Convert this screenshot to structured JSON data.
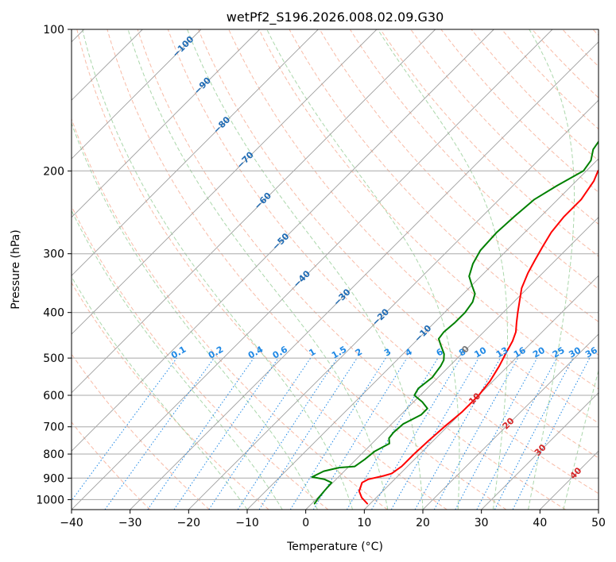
{
  "chart_data": {
    "type": "line",
    "title": "wetPf2_S196.2026.008.02.09.G30",
    "xlabel": "Temperature (°C)",
    "ylabel": "Pressure (hPa)",
    "xlim": [
      -40,
      50
    ],
    "ylim": [
      1050,
      100
    ],
    "y_scale": "log",
    "grid": true,
    "x_ticks": [
      -40,
      -30,
      -20,
      -10,
      0,
      10,
      20,
      30,
      40,
      50
    ],
    "x_tick_labels": [
      "−40",
      "−30",
      "−20",
      "−10",
      "0",
      "10",
      "20",
      "30",
      "40",
      "50"
    ],
    "y_ticks": [
      100,
      200,
      300,
      400,
      500,
      600,
      700,
      800,
      900,
      1000
    ],
    "y_tick_labels": [
      "100",
      "200",
      "300",
      "400",
      "500",
      "600",
      "700",
      "800",
      "900",
      "1000"
    ],
    "series": [
      {
        "color": "#ff0000",
        "points": [
          [
            9.5,
            1020
          ],
          [
            7.5,
            990
          ],
          [
            6.0,
            960
          ],
          [
            5.0,
            920
          ],
          [
            5.5,
            905
          ],
          [
            7.5,
            890
          ],
          [
            8.5,
            880
          ],
          [
            9.0,
            850
          ],
          [
            9.0,
            800
          ],
          [
            9.2,
            750
          ],
          [
            9.5,
            700
          ],
          [
            10.0,
            650
          ],
          [
            10.0,
            600
          ],
          [
            9.5,
            560
          ],
          [
            8.5,
            520
          ],
          [
            7.5,
            490
          ],
          [
            6.5,
            460
          ],
          [
            5.5,
            440
          ],
          [
            4.0,
            420
          ],
          [
            2.5,
            400
          ],
          [
            1.0,
            380
          ],
          [
            -1.0,
            355
          ],
          [
            -2.5,
            330
          ],
          [
            -3.5,
            310
          ],
          [
            -4.5,
            290
          ],
          [
            -5.5,
            270
          ],
          [
            -6.0,
            250
          ],
          [
            -6.0,
            230
          ],
          [
            -7.0,
            210
          ],
          [
            -8.0,
            200
          ],
          [
            -8.0,
            190
          ],
          [
            -6.5,
            182
          ],
          [
            -4.0,
            177
          ],
          [
            1.0,
            172
          ],
          [
            4.0,
            168
          ],
          [
            4.5,
            163
          ],
          [
            5.5,
            155
          ],
          [
            6.0,
            145
          ],
          [
            8.0,
            135
          ],
          [
            12.0,
            125
          ],
          [
            15.0,
            118
          ],
          [
            17.5,
            110
          ],
          [
            20.0,
            103
          ],
          [
            21.0,
            100
          ]
        ]
      },
      {
        "color": "#008000",
        "points": [
          [
            0.5,
            1020
          ],
          [
            0.2,
            995
          ],
          [
            0.0,
            960
          ],
          [
            -0.2,
            920
          ],
          [
            -2.0,
            905
          ],
          [
            -4.5,
            895
          ],
          [
            -3.5,
            870
          ],
          [
            -1.5,
            855
          ],
          [
            1.0,
            850
          ],
          [
            1.5,
            820
          ],
          [
            1.8,
            790
          ],
          [
            3.0,
            760
          ],
          [
            2.0,
            740
          ],
          [
            1.8,
            720
          ],
          [
            2.0,
            690
          ],
          [
            3.5,
            660
          ],
          [
            3.5,
            640
          ],
          [
            1.5,
            620
          ],
          [
            -1.0,
            600
          ],
          [
            -1.5,
            580
          ],
          [
            -1.0,
            550
          ],
          [
            -1.5,
            520
          ],
          [
            -2.0,
            505
          ],
          [
            -3.0,
            490
          ],
          [
            -5.0,
            470
          ],
          [
            -6.5,
            455
          ],
          [
            -6.8,
            440
          ],
          [
            -6.5,
            420
          ],
          [
            -6.5,
            400
          ],
          [
            -7.0,
            380
          ],
          [
            -8.0,
            365
          ],
          [
            -10.0,
            350
          ],
          [
            -12.0,
            335
          ],
          [
            -13.5,
            315
          ],
          [
            -14.5,
            295
          ],
          [
            -14.8,
            270
          ],
          [
            -14.5,
            250
          ],
          [
            -14.0,
            230
          ],
          [
            -12.5,
            215
          ],
          [
            -10.5,
            200
          ],
          [
            -11.0,
            190
          ],
          [
            -12.5,
            180
          ],
          [
            -13.0,
            172
          ],
          [
            -12.5,
            165
          ],
          [
            -10.5,
            160
          ],
          [
            -8.0,
            155
          ],
          [
            -7.0,
            148
          ],
          [
            -6.5,
            140
          ],
          [
            -6.0,
            130
          ],
          [
            -5.0,
            120
          ],
          [
            -3.0,
            112
          ],
          [
            -1.0,
            106
          ],
          [
            1.0,
            100
          ]
        ]
      }
    ],
    "dry_adiabat_labels": [
      "−100",
      "−90",
      "−80",
      "−70",
      "−60",
      "−50",
      "−40",
      "−30",
      "−20",
      "−10",
      "0",
      "10",
      "20",
      "30",
      "40"
    ],
    "mixing_ratio_labels": [
      "0.1",
      "0.2",
      "0.4",
      "0.6",
      "1",
      "1.5",
      "2",
      "3",
      "4",
      "6",
      "8",
      "10",
      "13",
      "16",
      "20",
      "25",
      "30",
      "36"
    ],
    "colors": {
      "temperature": "#ff0000",
      "dewpoint": "#008000",
      "isotherm_skewed": "#9e9e9e",
      "isobar": "#a8a8a8",
      "dry_adiabat": "#f5a48a",
      "moist_adiabat": "#8fc98f",
      "mixing_ratio": "#1e88e5",
      "label_cold": "#1f6bb4",
      "label_zero": "#777777",
      "label_warm": "#d62728"
    }
  }
}
